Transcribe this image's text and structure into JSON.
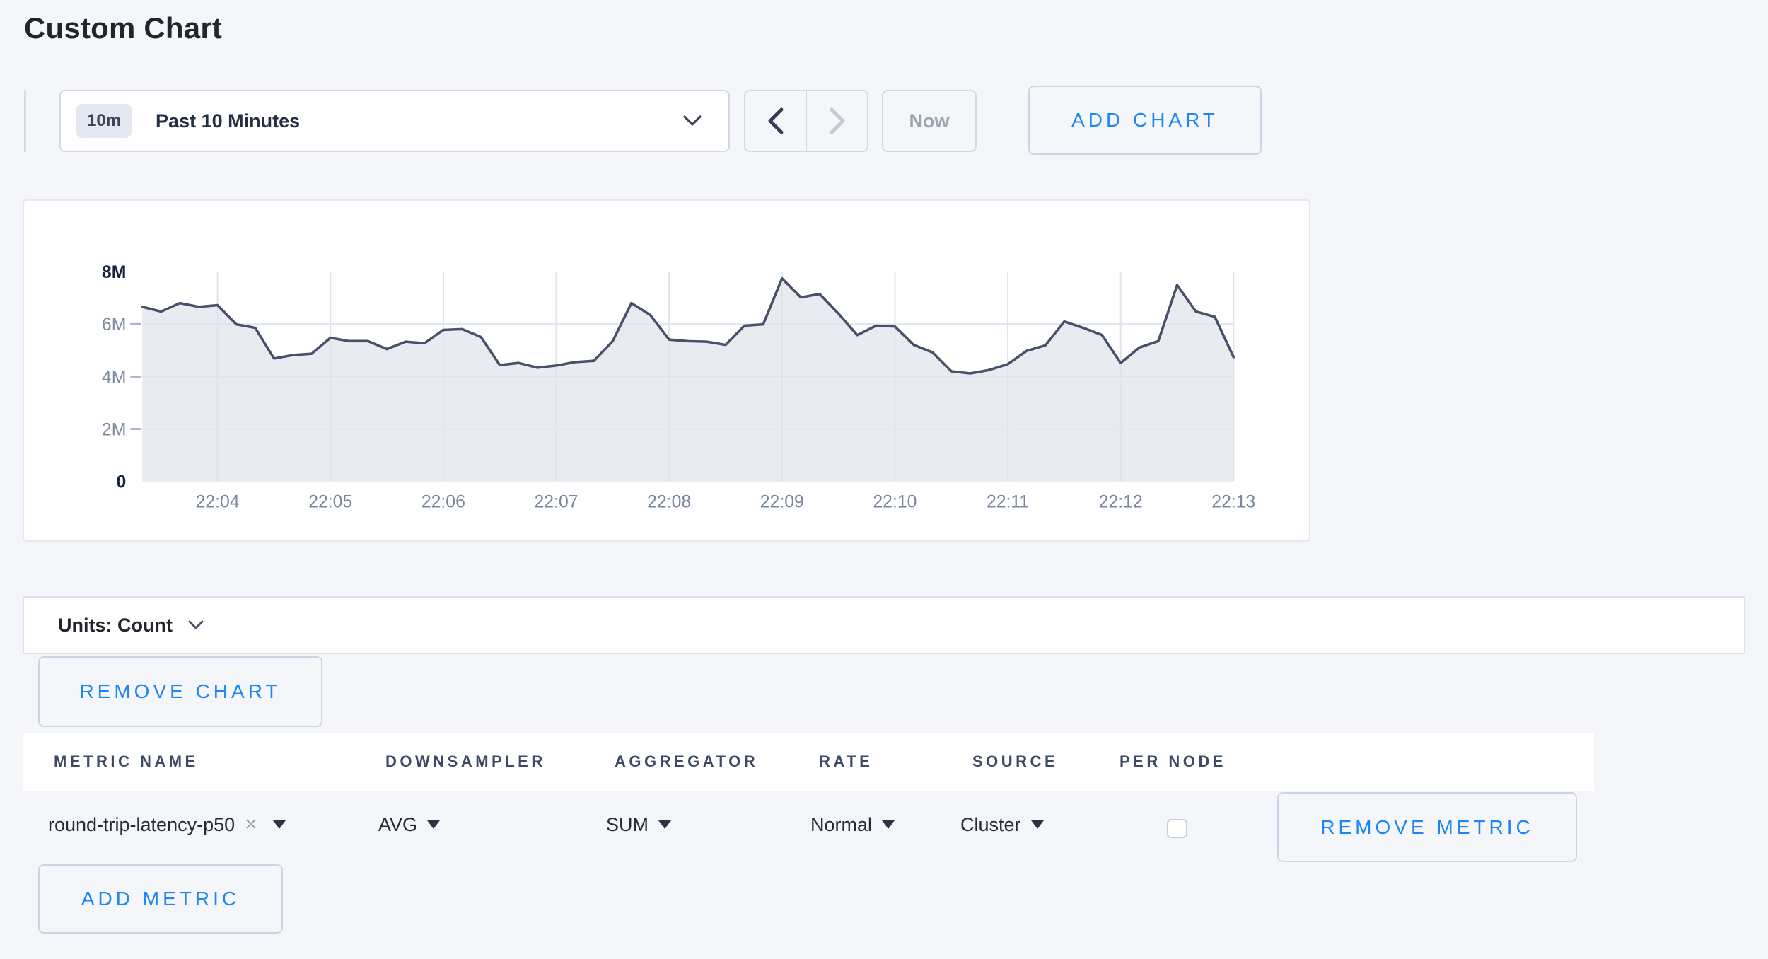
{
  "page": {
    "title": "Custom Chart"
  },
  "colors": {
    "accent_blue": "#1e85f4",
    "chart_line": "#47516a",
    "chart_fill": "#e9ebf1",
    "grid": "#dee4ee",
    "tick_dash": "#a9b6c9",
    "axis_label": "#7b8ba1",
    "axis_label_emphasis": "#16243e",
    "x_label": "#7787a0"
  },
  "icons": {
    "remove_x": "×"
  },
  "toolbar": {
    "range_badge": "10m",
    "range_label": "Past 10 Minutes",
    "now_label": "Now",
    "add_chart_label": "ADD CHART"
  },
  "chart_data": {
    "type": "area",
    "title": "",
    "xlabel": "",
    "ylabel": "",
    "x_start": "22:03:20",
    "x_interval_seconds": 10,
    "x_total_seconds": 580,
    "x_first_tick_offset_seconds": 40,
    "x_tick_step_seconds": 60,
    "x_tick_labels": [
      "22:04",
      "22:05",
      "22:06",
      "22:07",
      "22:08",
      "22:09",
      "22:10",
      "22:11",
      "22:12",
      "22:13"
    ],
    "y_tick_labels": [
      "0",
      "2M",
      "4M",
      "6M",
      "8M"
    ],
    "y_tick_values_millions": [
      0,
      2,
      4,
      6,
      8
    ],
    "ylim": [
      0,
      8000000
    ],
    "grid": true,
    "legend": "none",
    "series": [
      {
        "name": "round-trip-latency-p50",
        "values_millions": [
          6.66,
          6.48,
          6.8,
          6.66,
          6.72,
          5.99,
          5.86,
          4.69,
          4.82,
          4.87,
          5.48,
          5.35,
          5.35,
          5.05,
          5.33,
          5.27,
          5.78,
          5.81,
          5.51,
          4.44,
          4.52,
          4.34,
          4.42,
          4.55,
          4.6,
          5.35,
          6.8,
          6.35,
          5.41,
          5.35,
          5.33,
          5.21,
          5.94,
          5.99,
          7.74,
          7.02,
          7.15,
          6.4,
          5.58,
          5.94,
          5.91,
          5.21,
          4.92,
          4.2,
          4.12,
          4.25,
          4.47,
          4.98,
          5.19,
          6.1,
          5.86,
          5.59,
          4.52,
          5.11,
          5.35,
          7.49,
          6.48,
          6.28,
          4.74
        ]
      }
    ]
  },
  "units_bar": {
    "label": "Units: Count"
  },
  "chart_actions": {
    "remove_chart_label": "REMOVE CHART"
  },
  "metrics_table": {
    "headers": [
      "METRIC NAME",
      "DOWNSAMPLER",
      "AGGREGATOR",
      "RATE",
      "SOURCE",
      "PER NODE"
    ],
    "rows": [
      {
        "metric_name": "round-trip-latency-p50",
        "downsampler": "AVG",
        "aggregator": "SUM",
        "rate": "Normal",
        "source": "Cluster",
        "per_node_checked": false,
        "remove_label": "REMOVE METRIC"
      }
    ],
    "add_metric_label": "ADD METRIC"
  }
}
